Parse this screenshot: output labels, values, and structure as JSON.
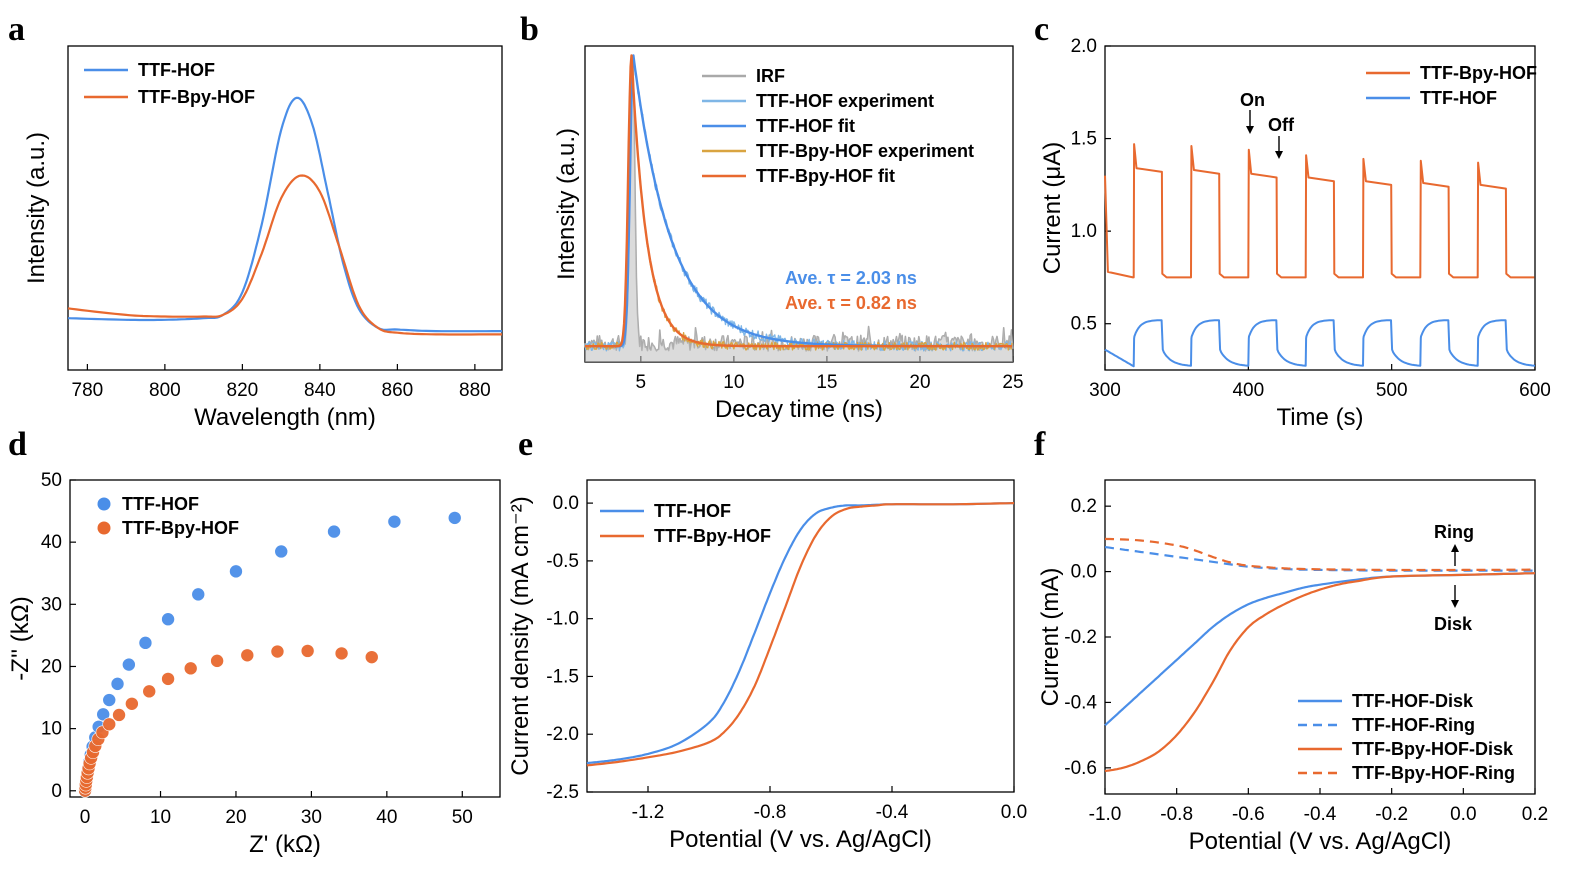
{
  "colors": {
    "blue": "#4a8ee8",
    "orange": "#e8692f",
    "light_blue": "#7fb6e6",
    "tan": "#d9a441",
    "gray": "#a9a9a9"
  },
  "chart_data": [
    {
      "panel": "a",
      "type": "line",
      "xlabel": "Wavelength (nm)",
      "ylabel": "Intensity (a.u.)",
      "xlim": [
        775,
        887
      ],
      "ylim": [
        0,
        1
      ],
      "xticks": [
        "780",
        "800",
        "820",
        "840",
        "860",
        "880"
      ],
      "yticks": [],
      "legend_position": "top-left",
      "series": [
        {
          "name": "TTF-HOF",
          "color": "#4a8ee8",
          "x": [
            775,
            790,
            800,
            810,
            815,
            820,
            825,
            830,
            834,
            838,
            842,
            846,
            850,
            855,
            860,
            870,
            887
          ],
          "y": [
            0.16,
            0.155,
            0.155,
            0.16,
            0.17,
            0.24,
            0.45,
            0.74,
            0.84,
            0.76,
            0.55,
            0.33,
            0.19,
            0.13,
            0.125,
            0.12,
            0.12
          ]
        },
        {
          "name": "TTF-Bpy-HOF",
          "color": "#e8692f",
          "x": [
            775,
            790,
            800,
            810,
            815,
            820,
            825,
            830,
            835,
            840,
            845,
            850,
            855,
            860,
            870,
            887
          ],
          "y": [
            0.19,
            0.17,
            0.165,
            0.165,
            0.17,
            0.22,
            0.36,
            0.53,
            0.6,
            0.55,
            0.38,
            0.2,
            0.13,
            0.115,
            0.11,
            0.11
          ]
        }
      ]
    },
    {
      "panel": "b",
      "type": "line",
      "xlabel": "Decay time (ns)",
      "ylabel": "Intensity (a.u.)",
      "xlim": [
        2,
        25
      ],
      "ylim": [
        0,
        1
      ],
      "xticks": [
        "5",
        "10",
        "15",
        "20",
        "25"
      ],
      "yticks": [],
      "legend_position": "top-right",
      "series": [
        {
          "name": "IRF",
          "color": "#a9a9a9"
        },
        {
          "name": "TTF-HOF experiment",
          "color": "#7fb6e6"
        },
        {
          "name": "TTF-HOF fit",
          "color": "#4a8ee8",
          "peak_x": 4.6,
          "tau_ns": 2.03
        },
        {
          "name": "TTF-Bpy-HOF experiment",
          "color": "#d9a441"
        },
        {
          "name": "TTF-Bpy-HOF fit",
          "color": "#e8692f",
          "peak_x": 4.6,
          "tau_ns": 0.82
        }
      ],
      "annotations": [
        "Ave. τ = 2.03 ns",
        "Ave. τ = 0.82 ns"
      ]
    },
    {
      "panel": "c",
      "type": "line",
      "xlabel": "Time (s)",
      "ylabel": "Current (μA)",
      "xlim": [
        300,
        600
      ],
      "ylim": [
        0.25,
        2.0
      ],
      "xticks": [
        "300",
        "400",
        "500",
        "600"
      ],
      "yticks": [
        "0.5",
        "1.0",
        "1.5",
        "2.0"
      ],
      "legend_position": "top-right",
      "on_times": [
        320,
        360,
        400,
        440,
        480,
        520,
        560
      ],
      "off_times": [
        340,
        380,
        420,
        460,
        500,
        540,
        580
      ],
      "series": [
        {
          "name": "TTF-Bpy-HOF",
          "color": "#e8692f",
          "dark": 0.75,
          "spike": [
            1.47,
            1.46,
            1.44,
            1.41,
            1.39,
            1.38,
            1.37
          ],
          "plateau": [
            1.32,
            1.31,
            1.29,
            1.27,
            1.25,
            1.24,
            1.23
          ]
        },
        {
          "name": "TTF-HOF",
          "color": "#4a8ee8",
          "dark": 0.27,
          "plateau": [
            0.52,
            0.52,
            0.52,
            0.52,
            0.52,
            0.52,
            0.52
          ]
        }
      ],
      "annotations": [
        "On",
        "Off"
      ]
    },
    {
      "panel": "d",
      "type": "scatter",
      "xlabel": "Z' (kΩ)",
      "ylabel": "-Z'' (kΩ)",
      "xlim": [
        -2,
        55
      ],
      "ylim": [
        -1,
        50
      ],
      "xticks": [
        "0",
        "10",
        "20",
        "30",
        "40",
        "50"
      ],
      "yticks": [
        "0",
        "10",
        "20",
        "30",
        "40",
        "50"
      ],
      "legend_position": "top-left",
      "series": [
        {
          "name": "TTF-HOF",
          "color": "#4a8ee8",
          "x": [
            0.0,
            0.05,
            0.1,
            0.18,
            0.28,
            0.4,
            0.55,
            0.75,
            1.0,
            1.35,
            1.8,
            2.4,
            3.2,
            4.3,
            5.8,
            8.0,
            11.0,
            15.0,
            20.0,
            26.0,
            33.0,
            41.0,
            49.0
          ],
          "y": [
            0.0,
            0.6,
            1.2,
            1.9,
            2.7,
            3.6,
            4.6,
            5.8,
            7.1,
            8.6,
            10.3,
            12.3,
            14.6,
            17.2,
            20.3,
            23.8,
            27.6,
            31.6,
            35.3,
            38.5,
            41.7,
            43.3,
            43.9
          ]
        },
        {
          "name": "TTF-Bpy-HOF",
          "color": "#e8692f",
          "x": [
            0.0,
            0.05,
            0.1,
            0.16,
            0.24,
            0.34,
            0.46,
            0.6,
            0.8,
            1.05,
            1.35,
            1.75,
            2.3,
            3.2,
            4.5,
            6.2,
            8.5,
            11.0,
            14.0,
            17.5,
            21.5,
            25.5,
            29.5,
            34.0,
            38.0
          ],
          "y": [
            0.0,
            0.5,
            1.0,
            1.6,
            2.2,
            2.9,
            3.6,
            4.4,
            5.3,
            6.2,
            7.2,
            8.3,
            9.4,
            10.7,
            12.2,
            14.0,
            16.0,
            18.0,
            19.7,
            20.9,
            21.8,
            22.4,
            22.5,
            22.1,
            21.5
          ]
        }
      ]
    },
    {
      "panel": "e",
      "type": "line",
      "xlabel": "Potential (V vs. Ag/AgCl)",
      "ylabel": "Current density (mA cm⁻²)",
      "xlim": [
        -1.4,
        0.0
      ],
      "ylim": [
        -2.5,
        0.2
      ],
      "xticks": [
        "-1.2",
        "-0.8",
        "-0.4",
        "0.0"
      ],
      "yticks": [
        "0.0",
        "-0.5",
        "-1.0",
        "-1.5",
        "-2.0",
        "-2.5"
      ],
      "legend_position": "top-left",
      "series": [
        {
          "name": "TTF-HOF",
          "color": "#4a8ee8",
          "x": [
            -1.4,
            -1.3,
            -1.2,
            -1.1,
            -1.0,
            -0.95,
            -0.9,
            -0.85,
            -0.8,
            -0.75,
            -0.7,
            -0.65,
            -0.6,
            -0.55,
            -0.5,
            -0.4,
            -0.2,
            0.0
          ],
          "y": [
            -2.25,
            -2.22,
            -2.17,
            -2.08,
            -1.9,
            -1.72,
            -1.45,
            -1.12,
            -0.78,
            -0.47,
            -0.23,
            -0.09,
            -0.04,
            -0.02,
            -0.02,
            -0.01,
            -0.01,
            0.0
          ]
        },
        {
          "name": "TTF-Bpy-HOF",
          "color": "#e8692f",
          "x": [
            -1.4,
            -1.3,
            -1.2,
            -1.1,
            -1.0,
            -0.95,
            -0.9,
            -0.85,
            -0.8,
            -0.75,
            -0.7,
            -0.65,
            -0.6,
            -0.55,
            -0.5,
            -0.45,
            -0.4,
            -0.2,
            0.0
          ],
          "y": [
            -2.27,
            -2.24,
            -2.2,
            -2.15,
            -2.07,
            -1.98,
            -1.82,
            -1.58,
            -1.25,
            -0.9,
            -0.55,
            -0.28,
            -0.12,
            -0.05,
            -0.03,
            -0.02,
            -0.01,
            -0.01,
            0.0
          ]
        }
      ]
    },
    {
      "panel": "f",
      "type": "line",
      "xlabel": "Potential (V vs. Ag/AgCl)",
      "ylabel": "Current (mA)",
      "xlim": [
        -1.0,
        0.2
      ],
      "ylim": [
        -0.68,
        0.28
      ],
      "xticks": [
        "-1.0",
        "-0.8",
        "-0.6",
        "-0.4",
        "-0.2",
        "0.0",
        "0.2"
      ],
      "yticks": [
        "0.2",
        "0.0",
        "-0.2",
        "-0.4",
        "-0.6"
      ],
      "legend_position": "bottom-right",
      "series": [
        {
          "name": "TTF-HOF-Disk",
          "color": "#4a8ee8",
          "dash": false,
          "x": [
            -1.0,
            -0.95,
            -0.9,
            -0.85,
            -0.8,
            -0.75,
            -0.7,
            -0.65,
            -0.6,
            -0.55,
            -0.5,
            -0.45,
            -0.4,
            -0.3,
            -0.2,
            0.0,
            0.2
          ],
          "y": [
            -0.47,
            -0.42,
            -0.37,
            -0.32,
            -0.27,
            -0.22,
            -0.17,
            -0.13,
            -0.1,
            -0.08,
            -0.065,
            -0.05,
            -0.04,
            -0.025,
            -0.015,
            -0.01,
            -0.005
          ]
        },
        {
          "name": "TTF-HOF-Ring",
          "color": "#4a8ee8",
          "dash": true,
          "x": [
            -1.0,
            -0.9,
            -0.8,
            -0.7,
            -0.6,
            -0.5,
            -0.4,
            -0.2,
            0.0,
            0.2
          ],
          "y": [
            0.075,
            0.06,
            0.045,
            0.03,
            0.015,
            0.008,
            0.005,
            0.003,
            0.003,
            0.003
          ]
        },
        {
          "name": "TTF-Bpy-HOF-Disk",
          "color": "#e8692f",
          "dash": false,
          "x": [
            -1.0,
            -0.95,
            -0.9,
            -0.85,
            -0.8,
            -0.75,
            -0.7,
            -0.65,
            -0.6,
            -0.55,
            -0.5,
            -0.45,
            -0.4,
            -0.35,
            -0.3,
            -0.2,
            0.0,
            0.2
          ],
          "y": [
            -0.61,
            -0.6,
            -0.58,
            -0.55,
            -0.5,
            -0.43,
            -0.34,
            -0.24,
            -0.17,
            -0.13,
            -0.1,
            -0.075,
            -0.055,
            -0.04,
            -0.03,
            -0.015,
            -0.01,
            -0.005
          ]
        },
        {
          "name": "TTF-Bpy-HOF-Ring",
          "color": "#e8692f",
          "dash": true,
          "x": [
            -1.0,
            -0.9,
            -0.8,
            -0.75,
            -0.7,
            -0.65,
            -0.6,
            -0.5,
            -0.4,
            -0.2,
            0.0,
            0.2
          ],
          "y": [
            0.1,
            0.095,
            0.08,
            0.065,
            0.045,
            0.028,
            0.018,
            0.01,
            0.007,
            0.005,
            0.005,
            0.006
          ]
        }
      ],
      "annotations": [
        "Ring",
        "Disk"
      ]
    }
  ],
  "panel_letters": [
    "a",
    "b",
    "c",
    "d",
    "e",
    "f"
  ]
}
